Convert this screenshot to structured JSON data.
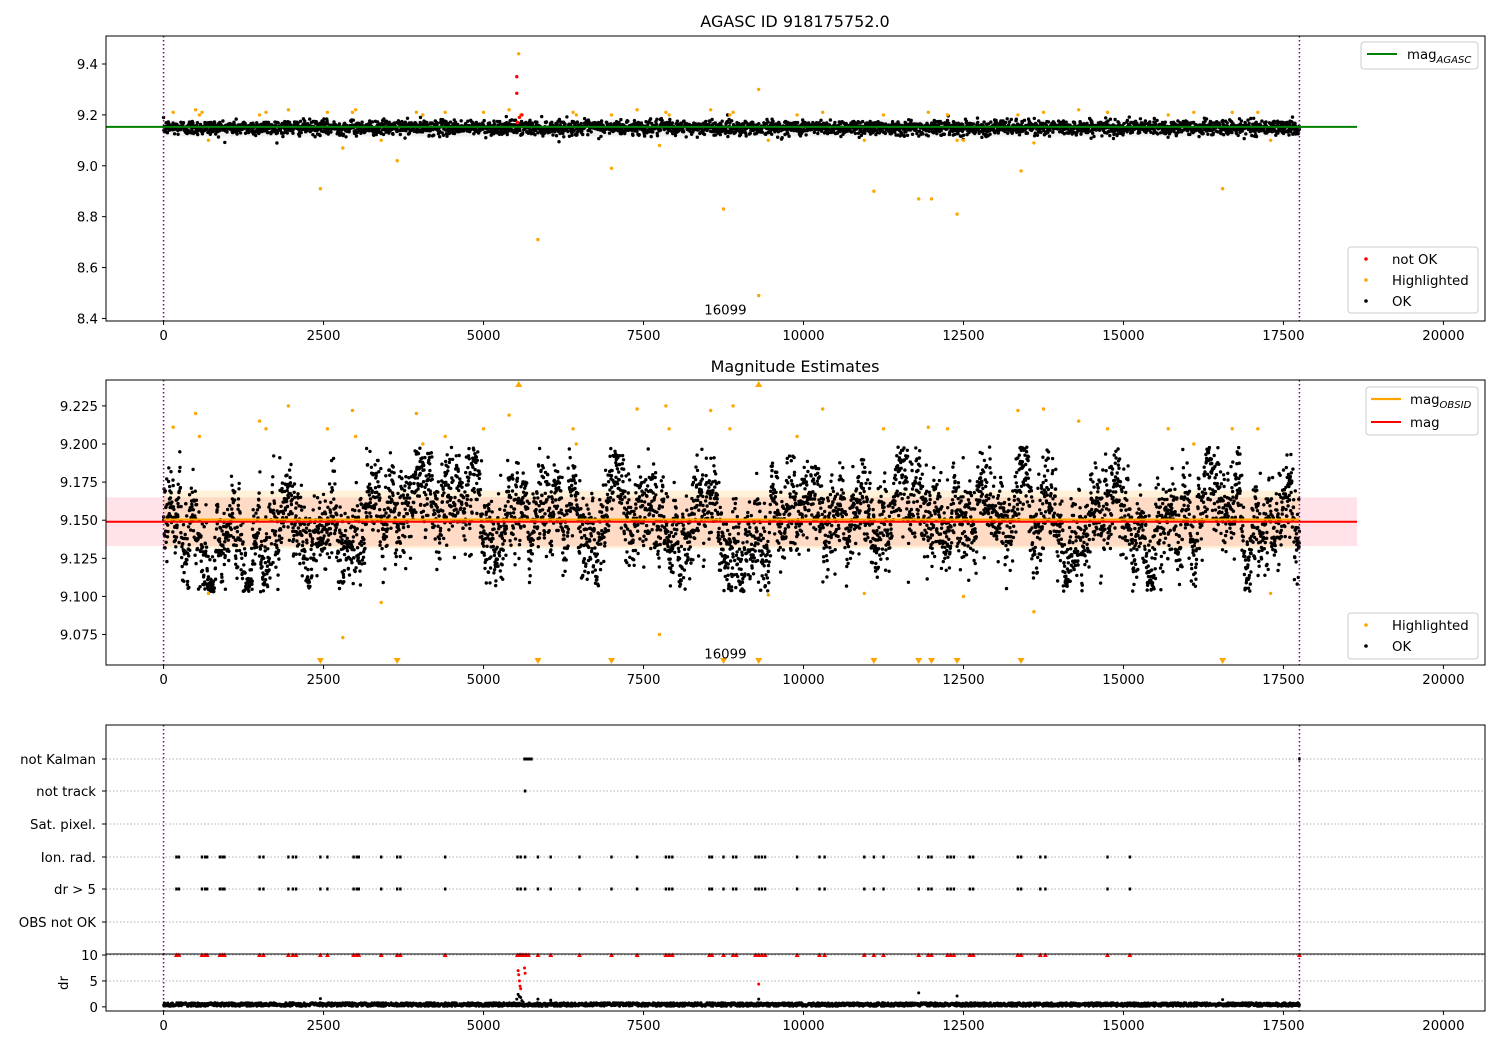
{
  "colors": {
    "ok": "#000000",
    "not_ok": "#ff0000",
    "highlighted": "#ffa500",
    "mag_agasc": "#008000",
    "mag_obsid": "#ffa500",
    "mag": "#ff0000",
    "obsid_line": "#800080",
    "std_band": "#ffc0cb"
  },
  "chart_data": [
    {
      "type": "scatter",
      "title": "AGASC ID 918175752.0",
      "xlabel": "",
      "ylabel": "",
      "xlim": [
        -900,
        20650
      ],
      "ylim": [
        8.39,
        9.51
      ],
      "x_ticks": [
        0,
        2500,
        5000,
        7500,
        10000,
        12500,
        15000,
        17500,
        20000
      ],
      "y_ticks": [
        8.4,
        8.6,
        8.8,
        9.0,
        9.2,
        9.4
      ],
      "y_tick_labels": [
        "8.4",
        "8.6",
        "8.8",
        "9.0",
        "9.2",
        "9.4"
      ],
      "vertical_lines": [
        0,
        17750
      ],
      "reference_lines": [
        {
          "name": "mag",
          "sub": "AGASC",
          "y": 9.153,
          "x_range": [
            -900,
            18650
          ],
          "color": "#008000"
        }
      ],
      "ok_band": {
        "center": 9.147,
        "halfwidth": 0.032,
        "x_range": [
          0,
          17750
        ]
      },
      "obsid_annotation": {
        "text": "16099",
        "x": 8780,
        "y": 8.435
      },
      "series": [
        {
          "name": "not OK",
          "color": "#ff0000",
          "points": [
            [
              5520,
              9.35
            ],
            [
              5520,
              9.285
            ],
            [
              5530,
              9.17
            ],
            [
              5560,
              9.19
            ],
            [
              5600,
              9.2
            ]
          ]
        },
        {
          "name": "Highlighted",
          "color": "#ffa500",
          "points": [
            [
              150,
              9.21
            ],
            [
              500,
              9.22
            ],
            [
              560,
              9.2
            ],
            [
              600,
              9.21
            ],
            [
              700,
              9.1
            ],
            [
              1500,
              9.2
            ],
            [
              1600,
              9.21
            ],
            [
              1950,
              9.22
            ],
            [
              2450,
              8.91
            ],
            [
              2560,
              9.21
            ],
            [
              2800,
              9.07
            ],
            [
              2950,
              9.21
            ],
            [
              3000,
              9.22
            ],
            [
              3400,
              9.1
            ],
            [
              3650,
              9.02
            ],
            [
              3950,
              9.21
            ],
            [
              4050,
              9.2
            ],
            [
              4400,
              9.21
            ],
            [
              5000,
              9.21
            ],
            [
              5400,
              9.22
            ],
            [
              5550,
              9.44
            ],
            [
              5580,
              9.2
            ],
            [
              5850,
              8.71
            ],
            [
              6400,
              9.21
            ],
            [
              6450,
              9.2
            ],
            [
              7000,
              8.99
            ],
            [
              7000,
              9.2
            ],
            [
              7400,
              9.22
            ],
            [
              7750,
              9.08
            ],
            [
              7850,
              9.21
            ],
            [
              7900,
              9.2
            ],
            [
              8550,
              9.22
            ],
            [
              8750,
              8.83
            ],
            [
              8900,
              9.21
            ],
            [
              8850,
              9.2
            ],
            [
              9300,
              9.3
            ],
            [
              9300,
              8.49
            ],
            [
              9450,
              9.1
            ],
            [
              9900,
              9.2
            ],
            [
              10300,
              9.21
            ],
            [
              10950,
              9.1
            ],
            [
              11100,
              8.9
            ],
            [
              11250,
              9.2
            ],
            [
              11800,
              8.87
            ],
            [
              12000,
              8.87
            ],
            [
              11950,
              9.21
            ],
            [
              12250,
              9.2
            ],
            [
              12400,
              8.81
            ],
            [
              12400,
              9.1
            ],
            [
              12500,
              9.1
            ],
            [
              13350,
              9.2
            ],
            [
              13400,
              8.98
            ],
            [
              13600,
              9.09
            ],
            [
              13750,
              9.21
            ],
            [
              14300,
              9.22
            ],
            [
              14750,
              9.21
            ],
            [
              15700,
              9.2
            ],
            [
              16100,
              9.21
            ],
            [
              16550,
              8.91
            ],
            [
              16700,
              9.21
            ],
            [
              17100,
              9.21
            ],
            [
              17300,
              9.1
            ]
          ]
        },
        {
          "name": "OK",
          "color": "#000000",
          "mean": 9.15,
          "std": 0.016,
          "x_range": [
            0,
            17750
          ]
        }
      ],
      "legend_lines": [
        {
          "label": "mag",
          "sub": "AGASC",
          "color": "#008000"
        }
      ],
      "legend_points": [
        {
          "label": "not OK",
          "color": "#ff0000"
        },
        {
          "label": "Highlighted",
          "color": "#ffa500"
        },
        {
          "label": "OK",
          "color": "#000000"
        }
      ]
    },
    {
      "type": "scatter",
      "title": "Magnitude Estimates",
      "xlabel": "",
      "ylabel": "",
      "xlim": [
        -900,
        20650
      ],
      "ylim": [
        9.055,
        9.242
      ],
      "x_ticks": [
        0,
        2500,
        5000,
        7500,
        10000,
        12500,
        15000,
        17500,
        20000
      ],
      "y_ticks": [
        9.075,
        9.1,
        9.125,
        9.15,
        9.175,
        9.2,
        9.225
      ],
      "y_tick_labels": [
        "9.075",
        "9.100",
        "9.125",
        "9.150",
        "9.175",
        "9.200",
        "9.225"
      ],
      "vertical_lines": [
        0,
        17750
      ],
      "reference_lines": [
        {
          "name": "mag",
          "sub": "OBSID",
          "y": 9.1505,
          "x_range": [
            0,
            17750
          ],
          "color": "#ffa500"
        },
        {
          "name": "mag",
          "sub": "",
          "y": 9.149,
          "x_range": [
            -900,
            18650
          ],
          "color": "#ff0000"
        }
      ],
      "std_band": {
        "center": 9.149,
        "halfwidth": 0.016,
        "x_range": [
          -900,
          18650
        ]
      },
      "obsid_band": {
        "center": 9.1505,
        "halfwidth": 0.019,
        "x_range": [
          0,
          17750
        ]
      },
      "obsid_annotation": {
        "text": "16099",
        "x": 8780,
        "y": 9.0625
      },
      "out_of_range_below_x": [
        2450,
        3650,
        5850,
        7000,
        8750,
        9300,
        11100,
        11800,
        12000,
        12400,
        13400,
        16550
      ],
      "out_of_range_above_x": [
        5550,
        9300
      ],
      "series": [
        {
          "name": "Highlighted",
          "color": "#ffa500",
          "points": [
            [
              150,
              9.211
            ],
            [
              500,
              9.22
            ],
            [
              560,
              9.205
            ],
            [
              700,
              9.102
            ],
            [
              1500,
              9.215
            ],
            [
              1600,
              9.21
            ],
            [
              1950,
              9.225
            ],
            [
              2560,
              9.21
            ],
            [
              2800,
              9.073
            ],
            [
              2950,
              9.222
            ],
            [
              3000,
              9.205
            ],
            [
              3400,
              9.096
            ],
            [
              3950,
              9.22
            ],
            [
              4050,
              9.2
            ],
            [
              4400,
              9.205
            ],
            [
              5000,
              9.21
            ],
            [
              5400,
              9.219
            ],
            [
              6400,
              9.21
            ],
            [
              6450,
              9.2
            ],
            [
              7400,
              9.223
            ],
            [
              7750,
              9.075
            ],
            [
              7850,
              9.225
            ],
            [
              7900,
              9.21
            ],
            [
              8550,
              9.222
            ],
            [
              8900,
              9.225
            ],
            [
              8850,
              9.21
            ],
            [
              9450,
              9.101
            ],
            [
              9900,
              9.205
            ],
            [
              10300,
              9.223
            ],
            [
              10950,
              9.102
            ],
            [
              11250,
              9.21
            ],
            [
              11950,
              9.211
            ],
            [
              12250,
              9.21
            ],
            [
              12500,
              9.1
            ],
            [
              13350,
              9.222
            ],
            [
              13600,
              9.09
            ],
            [
              13750,
              9.223
            ],
            [
              14300,
              9.215
            ],
            [
              14750,
              9.21
            ],
            [
              15700,
              9.21
            ],
            [
              16100,
              9.2
            ],
            [
              16700,
              9.21
            ],
            [
              17100,
              9.21
            ],
            [
              17300,
              9.102
            ]
          ]
        },
        {
          "name": "OK",
          "color": "#000000",
          "mean": 9.149,
          "std": 0.016,
          "x_range": [
            0,
            17750
          ]
        }
      ],
      "legend_lines": [
        {
          "label": "mag",
          "sub": "OBSID",
          "color": "#ffa500"
        },
        {
          "label": "mag",
          "sub": "",
          "color": "#ff0000"
        }
      ],
      "legend_points": [
        {
          "label": "Highlighted",
          "color": "#ffa500"
        },
        {
          "label": "OK",
          "color": "#000000"
        }
      ]
    },
    {
      "type": "scatter",
      "title": "",
      "xlabel": "",
      "ylabel": "",
      "xlim": [
        -900,
        20650
      ],
      "x_ticks": [
        0,
        2500,
        5000,
        7500,
        10000,
        12500,
        15000,
        17500,
        20000
      ],
      "vertical_lines": [
        0,
        17750
      ],
      "flag_rows": [
        "not Kalman",
        "not track",
        "Sat. pixel.",
        "Ion. rad.",
        "dr > 5",
        "OBS not OK"
      ],
      "flags": {
        "not Kalman": [
          5640,
          5650,
          5660,
          5670,
          5680,
          5690,
          5700,
          5710,
          5720,
          5730,
          5740,
          5750,
          17750
        ],
        "not track": [
          5650
        ],
        "Sat. pixel.": [],
        "Ion. rad.": [
          200,
          240,
          600,
          650,
          680,
          880,
          920,
          950,
          1500,
          1560,
          1950,
          2020,
          2070,
          2450,
          2560,
          2970,
          3020,
          3050,
          3400,
          3650,
          3700,
          4400,
          5530,
          5580,
          5650,
          5850,
          6050,
          6500,
          7000,
          7400,
          7850,
          7900,
          7950,
          8530,
          8570,
          8750,
          8900,
          8950,
          9250,
          9300,
          9350,
          9400,
          9900,
          10250,
          10330,
          10950,
          11100,
          11250,
          11800,
          11950,
          12000,
          12250,
          12300,
          12350,
          12600,
          12650,
          13350,
          13400,
          13700,
          13780,
          14750,
          15100
        ],
        "dr > 5": [
          200,
          240,
          600,
          650,
          680,
          880,
          920,
          950,
          1500,
          1560,
          1950,
          2020,
          2070,
          2450,
          2560,
          2970,
          3020,
          3050,
          3400,
          3650,
          3700,
          4400,
          5530,
          5580,
          5650,
          5850,
          6050,
          6500,
          7000,
          7400,
          7850,
          7900,
          7950,
          8530,
          8570,
          8750,
          8900,
          8950,
          9250,
          9300,
          9350,
          9400,
          9900,
          10250,
          10330,
          10950,
          11100,
          11250,
          11800,
          11950,
          12000,
          12250,
          12300,
          12350,
          12600,
          12650,
          13350,
          13400,
          13700,
          13780,
          14750,
          15100
        ],
        "OBS not OK": []
      }
    },
    {
      "type": "scatter",
      "title": "",
      "xlabel": "",
      "ylabel": "dr",
      "xlim": [
        -900,
        20650
      ],
      "ylim": [
        -0.8,
        10.2
      ],
      "x_ticks": [
        0,
        2500,
        5000,
        7500,
        10000,
        12500,
        15000,
        17500,
        20000
      ],
      "y_ticks": [
        0,
        5,
        10
      ],
      "y_tick_labels": [
        "0",
        "5",
        "10"
      ],
      "vertical_lines": [
        0,
        17750
      ],
      "ok_band": {
        "mean": 0.45,
        "spread": 0.35,
        "x_range": [
          0,
          17750
        ]
      },
      "series": [
        {
          "name": "dr > 10",
          "color": "#ff0000",
          "marker": "triangle",
          "x": [
            200,
            240,
            600,
            650,
            680,
            880,
            920,
            950,
            1500,
            1560,
            1950,
            2020,
            2070,
            2450,
            2560,
            2970,
            3020,
            3050,
            3400,
            3650,
            3700,
            4400,
            5530,
            5560,
            5580,
            5600,
            5620,
            5650,
            5670,
            5700,
            5850,
            6050,
            6500,
            7000,
            7400,
            7850,
            7900,
            7950,
            8530,
            8570,
            8750,
            8900,
            8950,
            9250,
            9300,
            9350,
            9400,
            9900,
            10250,
            10330,
            10950,
            11100,
            11250,
            11800,
            11950,
            12000,
            12250,
            12300,
            12350,
            12600,
            12650,
            13350,
            13400,
            13700,
            13780,
            14750,
            15100,
            17750
          ]
        },
        {
          "name": "dr mid (red)",
          "color": "#ff0000",
          "points": [
            [
              5540,
              7.0
            ],
            [
              5550,
              6.2
            ],
            [
              5560,
              5.0
            ],
            [
              5570,
              4.0
            ],
            [
              5580,
              3.5
            ],
            [
              5640,
              7.5
            ],
            [
              5650,
              6.5
            ],
            [
              9300,
              4.4
            ]
          ]
        },
        {
          "name": "dr mid (black)",
          "color": "#000000",
          "points": [
            [
              5520,
              1.5
            ],
            [
              5540,
              2.4
            ],
            [
              5560,
              2.0
            ],
            [
              5580,
              1.8
            ],
            [
              5600,
              1.2
            ],
            [
              5620,
              0.9
            ],
            [
              2450,
              1.6
            ],
            [
              5850,
              1.5
            ],
            [
              6050,
              1.3
            ],
            [
              11800,
              2.7
            ],
            [
              12400,
              2.1
            ],
            [
              16550,
              1.4
            ],
            [
              9300,
              1.5
            ]
          ]
        }
      ]
    }
  ]
}
